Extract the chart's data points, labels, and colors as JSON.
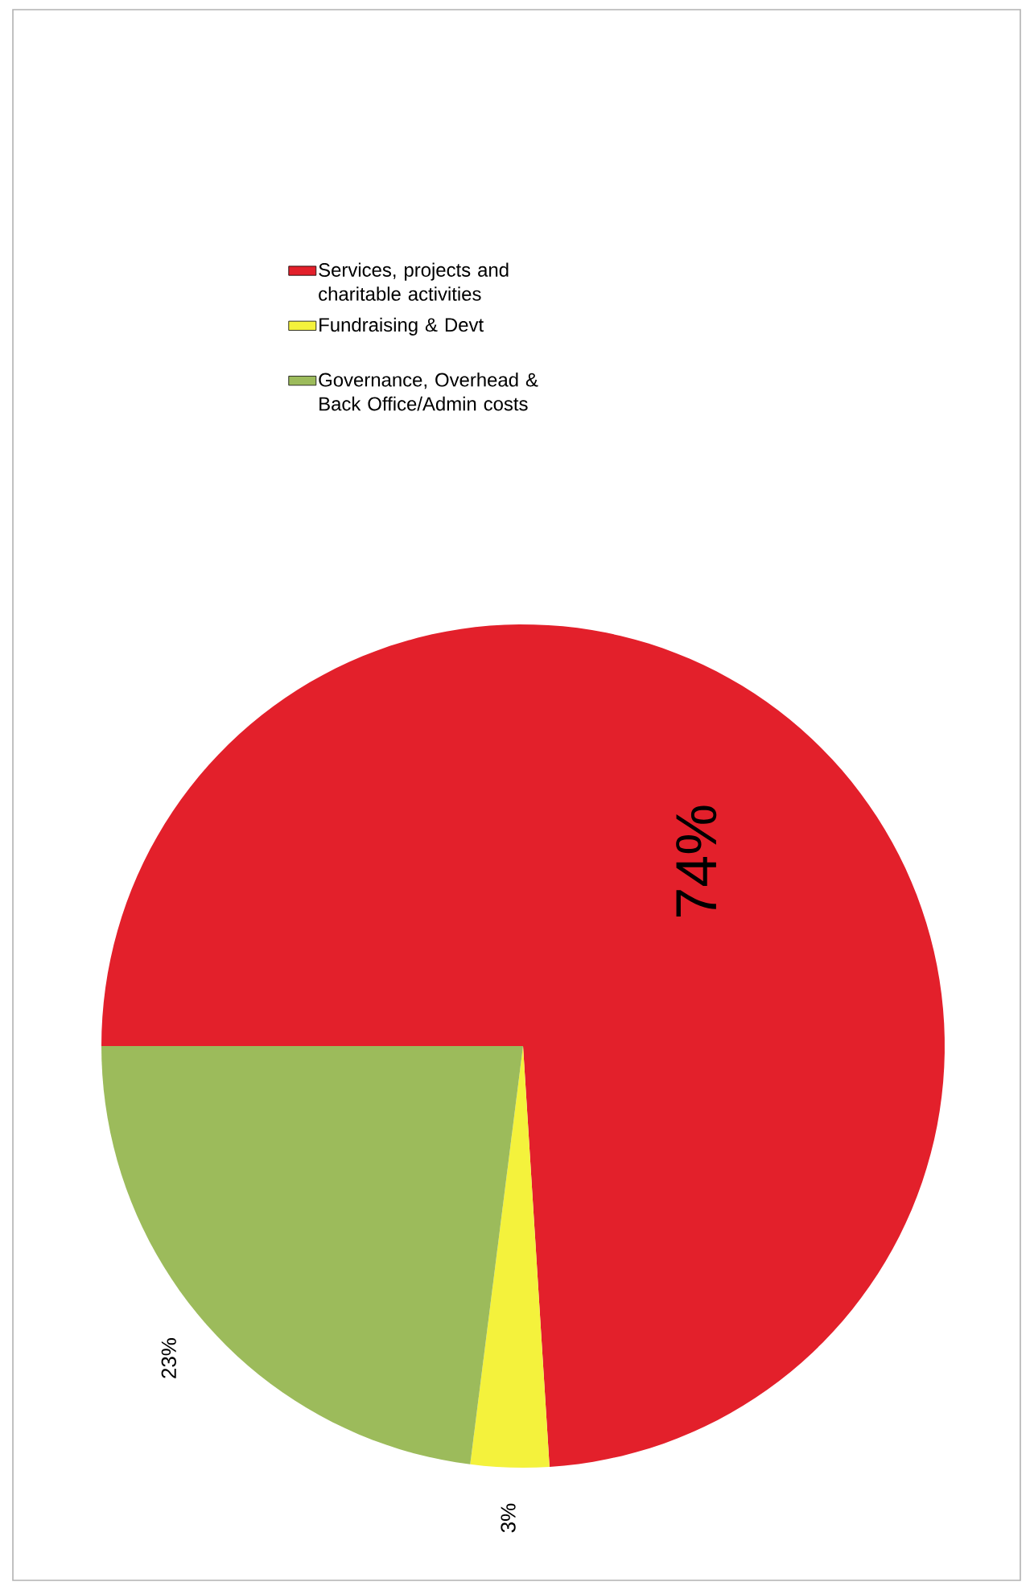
{
  "chart_data": {
    "type": "pie",
    "categories": [
      "Services, projects and charitable activities",
      "Fundraising & Devt",
      "Governance, Overhead & Back Office/Admin costs"
    ],
    "values": [
      74,
      3,
      23
    ],
    "colors": [
      "#e3202b",
      "#f4f23c",
      "#9cbb5b"
    ],
    "value_labels": [
      "74%",
      "3%",
      "23%"
    ],
    "legend": "top"
  }
}
